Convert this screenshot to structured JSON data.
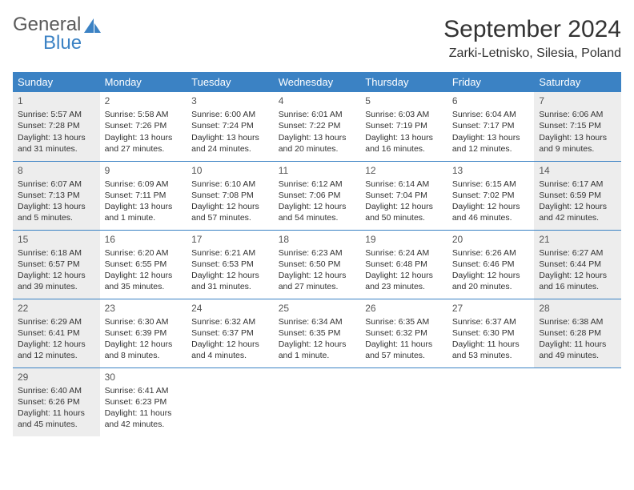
{
  "logo": {
    "text1": "General",
    "text2": "Blue",
    "icon_color": "#3b82c4"
  },
  "title": "September 2024",
  "location": "Zarki-Letnisko, Silesia, Poland",
  "colors": {
    "header_bg": "#3b82c4",
    "header_text": "#ffffff",
    "shaded_bg": "#ededed",
    "border": "#3b82c4",
    "text": "#333333"
  },
  "day_headers": [
    "Sunday",
    "Monday",
    "Tuesday",
    "Wednesday",
    "Thursday",
    "Friday",
    "Saturday"
  ],
  "weeks": [
    [
      {
        "n": "1",
        "shaded": true,
        "sr": "5:57 AM",
        "ss": "7:28 PM",
        "dl": "13 hours and 31 minutes."
      },
      {
        "n": "2",
        "shaded": false,
        "sr": "5:58 AM",
        "ss": "7:26 PM",
        "dl": "13 hours and 27 minutes."
      },
      {
        "n": "3",
        "shaded": false,
        "sr": "6:00 AM",
        "ss": "7:24 PM",
        "dl": "13 hours and 24 minutes."
      },
      {
        "n": "4",
        "shaded": false,
        "sr": "6:01 AM",
        "ss": "7:22 PM",
        "dl": "13 hours and 20 minutes."
      },
      {
        "n": "5",
        "shaded": false,
        "sr": "6:03 AM",
        "ss": "7:19 PM",
        "dl": "13 hours and 16 minutes."
      },
      {
        "n": "6",
        "shaded": false,
        "sr": "6:04 AM",
        "ss": "7:17 PM",
        "dl": "13 hours and 12 minutes."
      },
      {
        "n": "7",
        "shaded": true,
        "sr": "6:06 AM",
        "ss": "7:15 PM",
        "dl": "13 hours and 9 minutes."
      }
    ],
    [
      {
        "n": "8",
        "shaded": true,
        "sr": "6:07 AM",
        "ss": "7:13 PM",
        "dl": "13 hours and 5 minutes."
      },
      {
        "n": "9",
        "shaded": false,
        "sr": "6:09 AM",
        "ss": "7:11 PM",
        "dl": "13 hours and 1 minute."
      },
      {
        "n": "10",
        "shaded": false,
        "sr": "6:10 AM",
        "ss": "7:08 PM",
        "dl": "12 hours and 57 minutes."
      },
      {
        "n": "11",
        "shaded": false,
        "sr": "6:12 AM",
        "ss": "7:06 PM",
        "dl": "12 hours and 54 minutes."
      },
      {
        "n": "12",
        "shaded": false,
        "sr": "6:14 AM",
        "ss": "7:04 PM",
        "dl": "12 hours and 50 minutes."
      },
      {
        "n": "13",
        "shaded": false,
        "sr": "6:15 AM",
        "ss": "7:02 PM",
        "dl": "12 hours and 46 minutes."
      },
      {
        "n": "14",
        "shaded": true,
        "sr": "6:17 AM",
        "ss": "6:59 PM",
        "dl": "12 hours and 42 minutes."
      }
    ],
    [
      {
        "n": "15",
        "shaded": true,
        "sr": "6:18 AM",
        "ss": "6:57 PM",
        "dl": "12 hours and 39 minutes."
      },
      {
        "n": "16",
        "shaded": false,
        "sr": "6:20 AM",
        "ss": "6:55 PM",
        "dl": "12 hours and 35 minutes."
      },
      {
        "n": "17",
        "shaded": false,
        "sr": "6:21 AM",
        "ss": "6:53 PM",
        "dl": "12 hours and 31 minutes."
      },
      {
        "n": "18",
        "shaded": false,
        "sr": "6:23 AM",
        "ss": "6:50 PM",
        "dl": "12 hours and 27 minutes."
      },
      {
        "n": "19",
        "shaded": false,
        "sr": "6:24 AM",
        "ss": "6:48 PM",
        "dl": "12 hours and 23 minutes."
      },
      {
        "n": "20",
        "shaded": false,
        "sr": "6:26 AM",
        "ss": "6:46 PM",
        "dl": "12 hours and 20 minutes."
      },
      {
        "n": "21",
        "shaded": true,
        "sr": "6:27 AM",
        "ss": "6:44 PM",
        "dl": "12 hours and 16 minutes."
      }
    ],
    [
      {
        "n": "22",
        "shaded": true,
        "sr": "6:29 AM",
        "ss": "6:41 PM",
        "dl": "12 hours and 12 minutes."
      },
      {
        "n": "23",
        "shaded": false,
        "sr": "6:30 AM",
        "ss": "6:39 PM",
        "dl": "12 hours and 8 minutes."
      },
      {
        "n": "24",
        "shaded": false,
        "sr": "6:32 AM",
        "ss": "6:37 PM",
        "dl": "12 hours and 4 minutes."
      },
      {
        "n": "25",
        "shaded": false,
        "sr": "6:34 AM",
        "ss": "6:35 PM",
        "dl": "12 hours and 1 minute."
      },
      {
        "n": "26",
        "shaded": false,
        "sr": "6:35 AM",
        "ss": "6:32 PM",
        "dl": "11 hours and 57 minutes."
      },
      {
        "n": "27",
        "shaded": false,
        "sr": "6:37 AM",
        "ss": "6:30 PM",
        "dl": "11 hours and 53 minutes."
      },
      {
        "n": "28",
        "shaded": true,
        "sr": "6:38 AM",
        "ss": "6:28 PM",
        "dl": "11 hours and 49 minutes."
      }
    ],
    [
      {
        "n": "29",
        "shaded": true,
        "sr": "6:40 AM",
        "ss": "6:26 PM",
        "dl": "11 hours and 45 minutes."
      },
      {
        "n": "30",
        "shaded": false,
        "sr": "6:41 AM",
        "ss": "6:23 PM",
        "dl": "11 hours and 42 minutes."
      },
      null,
      null,
      null,
      null,
      null
    ]
  ],
  "labels": {
    "sunrise": "Sunrise:",
    "sunset": "Sunset:",
    "daylight": "Daylight:"
  }
}
